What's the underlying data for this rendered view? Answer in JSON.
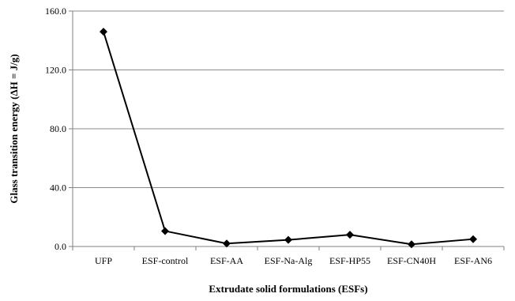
{
  "chart_data": {
    "type": "line",
    "title": "",
    "xlabel": "Extrudate solid formulations (ESFs)",
    "ylabel": "Glass transition energy  (ΔH = J/g)",
    "categories": [
      "UFP",
      "ESF-control",
      "ESF-AA",
      "ESF-Na-Alg",
      "ESF-HP55",
      "ESF-CN40H",
      "ESF-AN6"
    ],
    "series": [
      {
        "values": [
          146.0,
          10.5,
          2.0,
          4.5,
          8.0,
          1.5,
          5.0
        ],
        "color": "#000000",
        "marker": "diamond"
      }
    ],
    "ylim": [
      0,
      160
    ],
    "yticks": [
      0,
      40,
      80,
      120,
      160
    ],
    "ytick_labels": [
      "0.0",
      "40.0",
      "80.0",
      "120.0",
      "160.0"
    ],
    "grid": "horizontal",
    "legend": "none"
  }
}
